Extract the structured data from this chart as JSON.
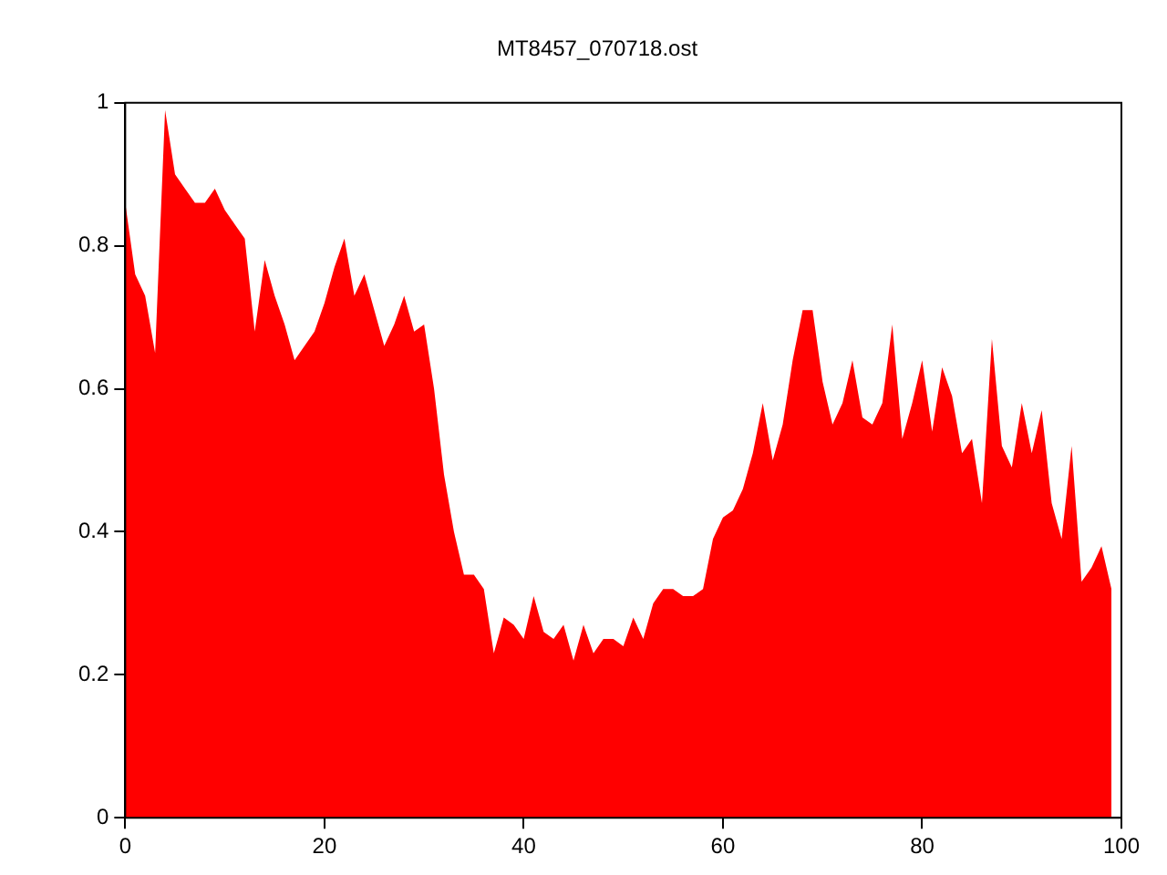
{
  "chart_data": {
    "type": "area",
    "title": "MT8457_070718.ost",
    "x": [
      0,
      1,
      2,
      3,
      4,
      5,
      6,
      7,
      8,
      9,
      10,
      11,
      12,
      13,
      14,
      15,
      16,
      17,
      18,
      19,
      20,
      21,
      22,
      23,
      24,
      25,
      26,
      27,
      28,
      29,
      30,
      31,
      32,
      33,
      34,
      35,
      36,
      37,
      38,
      39,
      40,
      41,
      42,
      43,
      44,
      45,
      46,
      47,
      48,
      49,
      50,
      51,
      52,
      53,
      54,
      55,
      56,
      57,
      58,
      59,
      60,
      61,
      62,
      63,
      64,
      65,
      66,
      67,
      68,
      69,
      70,
      71,
      72,
      73,
      74,
      75,
      76,
      77,
      78,
      79,
      80,
      81,
      82,
      83,
      84,
      85,
      86,
      87,
      88,
      89,
      90,
      91,
      92,
      93,
      94,
      95,
      96,
      97,
      98,
      99
    ],
    "series": [
      {
        "color": "#ff0000",
        "values": [
          0.86,
          0.76,
          0.73,
          0.65,
          0.99,
          0.9,
          0.88,
          0.86,
          0.86,
          0.88,
          0.85,
          0.83,
          0.81,
          0.68,
          0.78,
          0.73,
          0.69,
          0.64,
          0.66,
          0.68,
          0.72,
          0.77,
          0.81,
          0.73,
          0.76,
          0.71,
          0.66,
          0.69,
          0.73,
          0.68,
          0.69,
          0.6,
          0.48,
          0.4,
          0.34,
          0.34,
          0.32,
          0.23,
          0.28,
          0.27,
          0.25,
          0.31,
          0.26,
          0.25,
          0.27,
          0.22,
          0.27,
          0.23,
          0.25,
          0.25,
          0.24,
          0.28,
          0.25,
          0.3,
          0.32,
          0.32,
          0.31,
          0.31,
          0.32,
          0.39,
          0.42,
          0.43,
          0.46,
          0.51,
          0.58,
          0.5,
          0.55,
          0.64,
          0.71,
          0.71,
          0.61,
          0.55,
          0.58,
          0.64,
          0.56,
          0.55,
          0.58,
          0.69,
          0.53,
          0.58,
          0.64,
          0.54,
          0.63,
          0.59,
          0.51,
          0.53,
          0.44,
          0.67,
          0.52,
          0.49,
          0.58,
          0.51,
          0.57,
          0.44,
          0.39,
          0.52,
          0.33,
          0.35,
          0.38,
          0.32
        ]
      }
    ],
    "xlim": [
      0,
      100
    ],
    "xticks": [
      0,
      20,
      40,
      60,
      80,
      100
    ],
    "ylim": [
      0,
      1
    ],
    "yticks": [
      0,
      0.2,
      0.4,
      0.6,
      0.8,
      1
    ],
    "grid": false,
    "legend": false
  }
}
